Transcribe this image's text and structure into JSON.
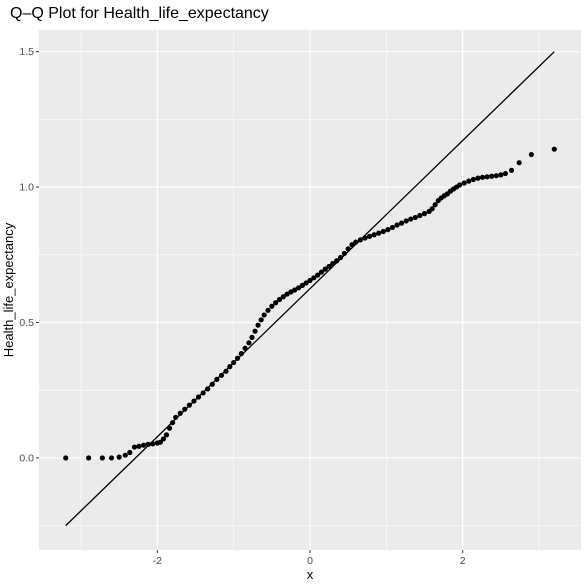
{
  "chart_data": {
    "type": "scatter",
    "title": "Q–Q Plot for Health_life_expectancy",
    "xlabel": "x",
    "ylabel": "Health_life_expectancy",
    "xlim": [
      -3.55,
      3.55
    ],
    "ylim": [
      -0.34,
      1.58
    ],
    "x_ticks": [
      {
        "value": -2,
        "label": "-2"
      },
      {
        "value": 0,
        "label": "0"
      },
      {
        "value": 2,
        "label": "2"
      }
    ],
    "y_ticks": [
      {
        "value": 0.0,
        "label": "0.0"
      },
      {
        "value": 0.5,
        "label": "0.5"
      },
      {
        "value": 1.0,
        "label": "1.0"
      },
      {
        "value": 1.5,
        "label": "1.5"
      }
    ],
    "reference_line": {
      "x": [
        -3.2,
        3.2
      ],
      "y": [
        -0.25,
        1.5
      ]
    },
    "grid": true,
    "background": "#ebebeb",
    "grid_color": "#ffffff",
    "point_color": "#000000",
    "line_color": "#000000",
    "points": [
      [
        -3.2,
        0.0
      ],
      [
        -2.9,
        0.0
      ],
      [
        -2.72,
        0.0
      ],
      [
        -2.6,
        0.0
      ],
      [
        -2.5,
        0.003
      ],
      [
        -2.42,
        0.01
      ],
      [
        -2.36,
        0.02
      ],
      [
        -2.3,
        0.04
      ],
      [
        -2.24,
        0.043
      ],
      [
        -2.18,
        0.047
      ],
      [
        -2.12,
        0.05
      ],
      [
        -2.06,
        0.052
      ],
      [
        -2.0,
        0.055
      ],
      [
        -1.96,
        0.058
      ],
      [
        -1.92,
        0.07
      ],
      [
        -1.88,
        0.085
      ],
      [
        -1.84,
        0.11
      ],
      [
        -1.8,
        0.13
      ],
      [
        -1.76,
        0.15
      ],
      [
        -1.7,
        0.165
      ],
      [
        -1.64,
        0.18
      ],
      [
        -1.58,
        0.195
      ],
      [
        -1.52,
        0.21
      ],
      [
        -1.46,
        0.225
      ],
      [
        -1.4,
        0.24
      ],
      [
        -1.34,
        0.255
      ],
      [
        -1.28,
        0.272
      ],
      [
        -1.22,
        0.29
      ],
      [
        -1.16,
        0.305
      ],
      [
        -1.1,
        0.32
      ],
      [
        -1.05,
        0.337
      ],
      [
        -1.0,
        0.352
      ],
      [
        -0.95,
        0.368
      ],
      [
        -0.9,
        0.385
      ],
      [
        -0.85,
        0.405
      ],
      [
        -0.8,
        0.425
      ],
      [
        -0.76,
        0.445
      ],
      [
        -0.72,
        0.468
      ],
      [
        -0.68,
        0.49
      ],
      [
        -0.64,
        0.51
      ],
      [
        -0.6,
        0.528
      ],
      [
        -0.55,
        0.545
      ],
      [
        -0.5,
        0.56
      ],
      [
        -0.45,
        0.573
      ],
      [
        -0.4,
        0.585
      ],
      [
        -0.35,
        0.595
      ],
      [
        -0.3,
        0.605
      ],
      [
        -0.25,
        0.613
      ],
      [
        -0.2,
        0.62
      ],
      [
        -0.15,
        0.628
      ],
      [
        -0.1,
        0.637
      ],
      [
        -0.05,
        0.646
      ],
      [
        0.0,
        0.655
      ],
      [
        0.05,
        0.665
      ],
      [
        0.1,
        0.675
      ],
      [
        0.15,
        0.686
      ],
      [
        0.2,
        0.697
      ],
      [
        0.25,
        0.707
      ],
      [
        0.3,
        0.718
      ],
      [
        0.35,
        0.728
      ],
      [
        0.4,
        0.74
      ],
      [
        0.45,
        0.755
      ],
      [
        0.5,
        0.772
      ],
      [
        0.55,
        0.787
      ],
      [
        0.6,
        0.797
      ],
      [
        0.66,
        0.805
      ],
      [
        0.72,
        0.812
      ],
      [
        0.78,
        0.818
      ],
      [
        0.84,
        0.824
      ],
      [
        0.9,
        0.83
      ],
      [
        0.96,
        0.836
      ],
      [
        1.02,
        0.843
      ],
      [
        1.08,
        0.851
      ],
      [
        1.14,
        0.86
      ],
      [
        1.2,
        0.867
      ],
      [
        1.26,
        0.875
      ],
      [
        1.32,
        0.882
      ],
      [
        1.38,
        0.888
      ],
      [
        1.44,
        0.895
      ],
      [
        1.5,
        0.902
      ],
      [
        1.56,
        0.91
      ],
      [
        1.6,
        0.92
      ],
      [
        1.64,
        0.935
      ],
      [
        1.68,
        0.95
      ],
      [
        1.72,
        0.96
      ],
      [
        1.76,
        0.968
      ],
      [
        1.8,
        0.975
      ],
      [
        1.84,
        0.985
      ],
      [
        1.88,
        0.993
      ],
      [
        1.92,
        1.0
      ],
      [
        1.96,
        1.008
      ],
      [
        2.02,
        1.015
      ],
      [
        2.08,
        1.022
      ],
      [
        2.14,
        1.028
      ],
      [
        2.2,
        1.033
      ],
      [
        2.26,
        1.036
      ],
      [
        2.32,
        1.038
      ],
      [
        2.38,
        1.04
      ],
      [
        2.44,
        1.042
      ],
      [
        2.5,
        1.045
      ],
      [
        2.56,
        1.05
      ],
      [
        2.64,
        1.062
      ],
      [
        2.74,
        1.09
      ],
      [
        2.9,
        1.12
      ],
      [
        3.2,
        1.14
      ]
    ]
  }
}
